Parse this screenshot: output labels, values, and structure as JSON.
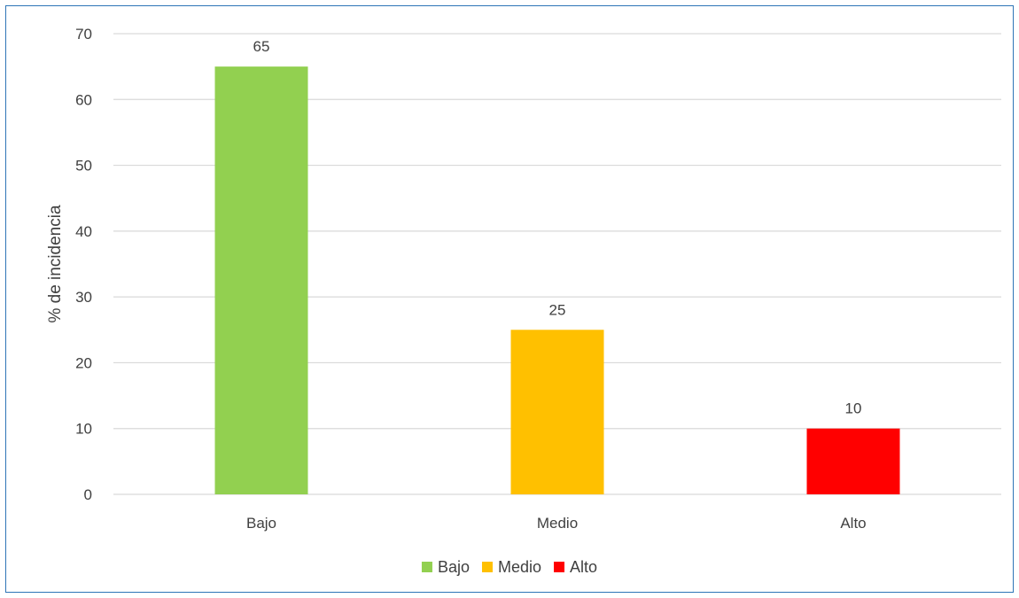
{
  "chart_data": {
    "type": "bar",
    "categories": [
      "Bajo",
      "Medio",
      "Alto"
    ],
    "values": [
      65,
      25,
      10
    ],
    "data_labels": [
      "65",
      "25",
      "10"
    ],
    "colors": [
      "#92d050",
      "#ffc000",
      "#ff0000"
    ],
    "title": "",
    "xlabel": "",
    "ylabel": "% de incidencia",
    "ylim": [
      0,
      70
    ],
    "yticks": [
      0,
      10,
      20,
      30,
      40,
      50,
      60,
      70
    ],
    "ytick_labels": [
      "0",
      "10",
      "20",
      "30",
      "40",
      "50",
      "60",
      "70"
    ],
    "grid": true,
    "legend": {
      "placement": "bottom-center",
      "entries": [
        "Bajo",
        "Medio",
        "Alto"
      ]
    },
    "frame_color": "#2e75b6",
    "gridline_color": "#d9d9d9"
  }
}
